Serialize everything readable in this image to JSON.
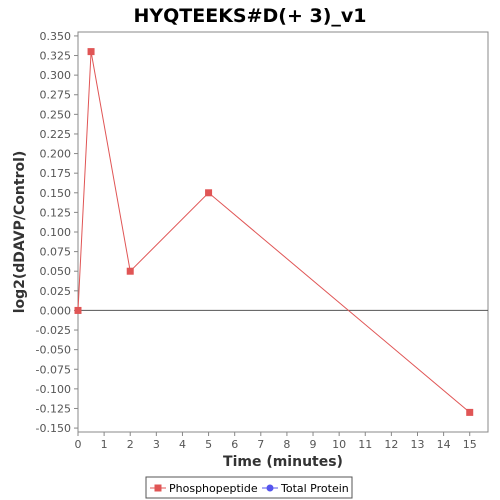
{
  "chart_data": {
    "type": "line",
    "title": "HYQTEEKS#D(+ 3)_v1",
    "xlabel": "Time (minutes)",
    "ylabel": "log2(dDAVP/Control)",
    "xlim": [
      0,
      15.7
    ],
    "ylim": [
      -0.155,
      0.355
    ],
    "x_ticks": [
      "0",
      "1",
      "2",
      "3",
      "4",
      "5",
      "6",
      "7",
      "8",
      "9",
      "10",
      "11",
      "12",
      "13",
      "14",
      "15"
    ],
    "y_ticks": [
      "0.350",
      "0.325",
      "0.300",
      "0.275",
      "0.250",
      "0.225",
      "0.200",
      "0.175",
      "0.150",
      "0.125",
      "0.100",
      "0.075",
      "0.050",
      "0.025",
      "0.000",
      "-0.025",
      "-0.050",
      "-0.075",
      "-0.100",
      "-0.125",
      "-0.150"
    ],
    "zero_line": 0,
    "grid": false,
    "legend_position": "bottom-center",
    "series": [
      {
        "name": "Phosphopeptide",
        "color": "#e05555",
        "marker": "square",
        "x": [
          0,
          0.5,
          2,
          5,
          15
        ],
        "y": [
          0.0,
          0.33,
          0.05,
          0.15,
          -0.13
        ]
      },
      {
        "name": "Total Protein",
        "color": "#5555ee",
        "marker": "circle",
        "x": [],
        "y": []
      }
    ]
  }
}
